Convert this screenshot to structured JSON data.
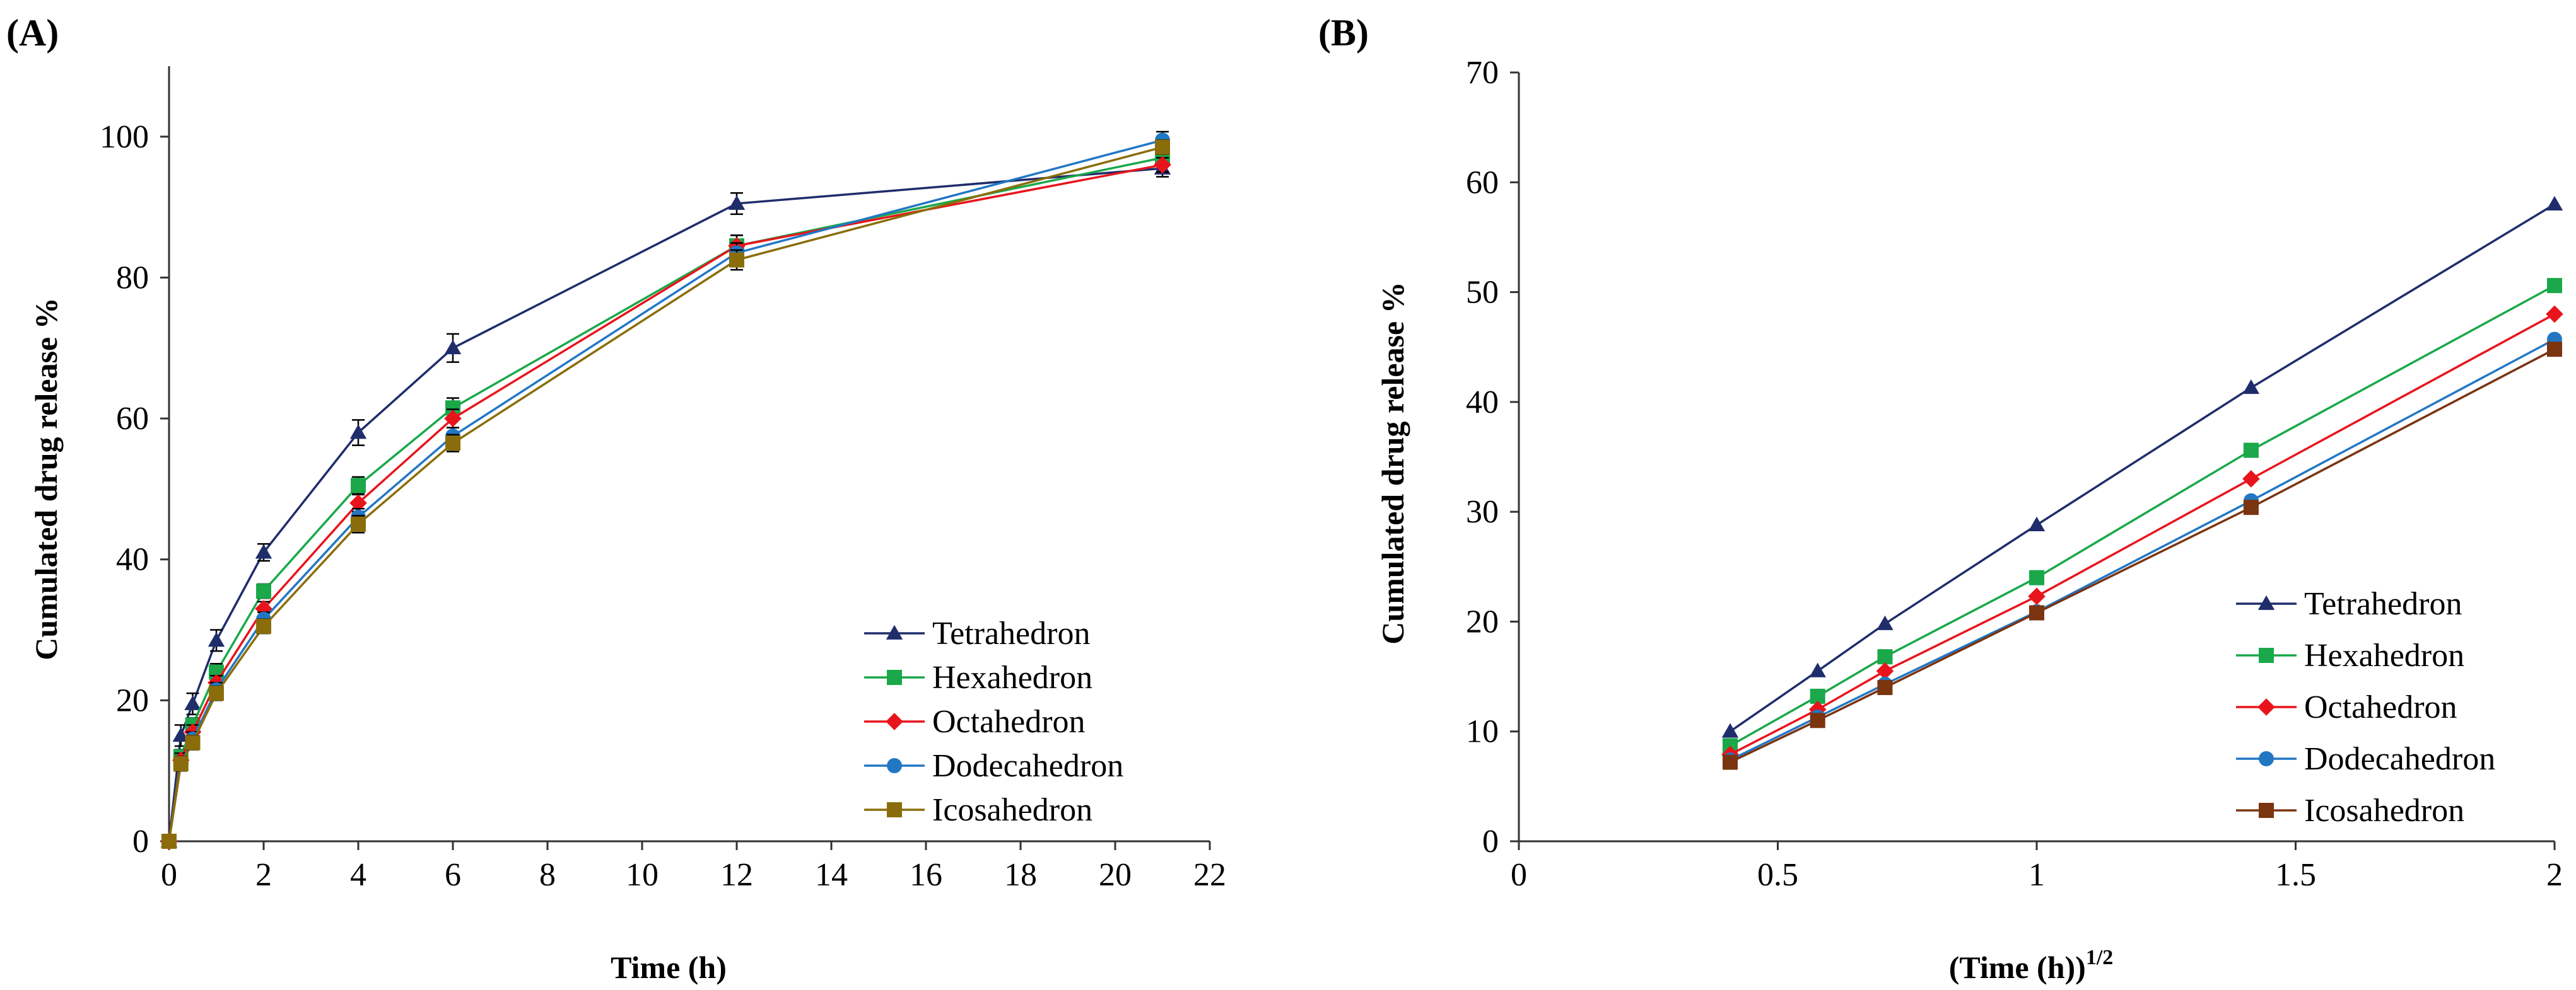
{
  "chart_data": [
    {
      "type": "line",
      "panel_label": "(A)",
      "title": "",
      "xlabel": "Time (h)",
      "ylabel": "Cumulated drug release  %",
      "xlim": [
        0,
        22
      ],
      "ylim": [
        0,
        110
      ],
      "xticks": [
        0,
        2,
        4,
        6,
        8,
        10,
        12,
        14,
        16,
        18,
        20,
        22
      ],
      "yticks": [
        0,
        20,
        40,
        60,
        80,
        100
      ],
      "grid": false,
      "error_bars": true,
      "legend_position": "bottom-right",
      "x": [
        0,
        0.25,
        0.5,
        1,
        2,
        4,
        6,
        12,
        21
      ],
      "series": [
        {
          "name": "Tetrahedron",
          "color": "#1f2d6b",
          "marker": "triangle",
          "values": [
            0,
            15,
            19.5,
            28.5,
            41,
            58,
            70,
            90.5,
            95.5
          ],
          "errors": [
            0,
            1.5,
            1.5,
            1.5,
            1.2,
            1.8,
            2.0,
            1.5,
            1.2
          ]
        },
        {
          "name": "Hexahedron",
          "color": "#1aa84a",
          "marker": "square",
          "values": [
            0,
            12,
            16.5,
            24,
            35.5,
            50.5,
            61.5,
            84.5,
            97
          ],
          "errors": [
            0,
            1.0,
            1.0,
            1.2,
            1.0,
            1.2,
            1.4,
            1.5,
            1.0
          ]
        },
        {
          "name": "Octahedron",
          "color": "#e8141c",
          "marker": "diamond",
          "values": [
            0,
            11.5,
            15.5,
            22.5,
            33,
            48,
            60,
            84.5,
            96
          ],
          "errors": [
            0,
            1.0,
            1.0,
            1.0,
            1.0,
            1.2,
            1.3,
            1.5,
            1.0
          ]
        },
        {
          "name": "Dodecahedron",
          "color": "#2277c4",
          "marker": "circle",
          "values": [
            0,
            11,
            14.5,
            21.5,
            31.5,
            46,
            57.5,
            83.5,
            99.5
          ],
          "errors": [
            0,
            1.0,
            1.0,
            1.0,
            1.0,
            1.2,
            1.2,
            1.4,
            1.2
          ]
        },
        {
          "name": "Icosahedron",
          "color": "#8a6d0a",
          "marker": "square",
          "values": [
            0,
            11,
            14,
            21,
            30.5,
            45,
            56.5,
            82.5,
            98.5
          ],
          "errors": [
            0,
            1.0,
            1.0,
            1.0,
            1.0,
            1.2,
            1.2,
            1.4,
            1.0
          ]
        }
      ]
    },
    {
      "type": "line",
      "panel_label": "(B)",
      "title": "",
      "xlabel": "(Time (h))",
      "xlabel_superscript": "1/2",
      "ylabel": "Cumulated drug release %",
      "xlim": [
        0,
        2
      ],
      "ylim": [
        0,
        70
      ],
      "xticks": [
        0,
        0.5,
        1,
        1.5,
        2
      ],
      "yticks": [
        0,
        10,
        20,
        30,
        40,
        50,
        60,
        70
      ],
      "grid": false,
      "error_bars": false,
      "legend_position": "bottom-right",
      "x": [
        0.408,
        0.577,
        0.707,
        1,
        1.414,
        2
      ],
      "series": [
        {
          "name": "Tetrahedron",
          "color": "#1f2d6b",
          "marker": "triangle",
          "values": [
            10,
            15.5,
            19.8,
            28.8,
            41.3,
            58
          ]
        },
        {
          "name": "Hexahedron",
          "color": "#1aa84a",
          "marker": "square",
          "values": [
            8.7,
            13.2,
            16.8,
            24,
            35.6,
            50.6
          ]
        },
        {
          "name": "Octahedron",
          "color": "#e8141c",
          "marker": "diamond",
          "values": [
            7.9,
            12,
            15.5,
            22.3,
            33,
            48
          ]
        },
        {
          "name": "Dodecahedron",
          "color": "#2277c4",
          "marker": "circle",
          "values": [
            7.4,
            11.3,
            14.3,
            20.9,
            31,
            45.7
          ]
        },
        {
          "name": "Icosahedron",
          "color": "#7a3410",
          "marker": "square",
          "values": [
            7.2,
            11,
            14,
            20.8,
            30.4,
            44.8
          ]
        }
      ]
    }
  ]
}
